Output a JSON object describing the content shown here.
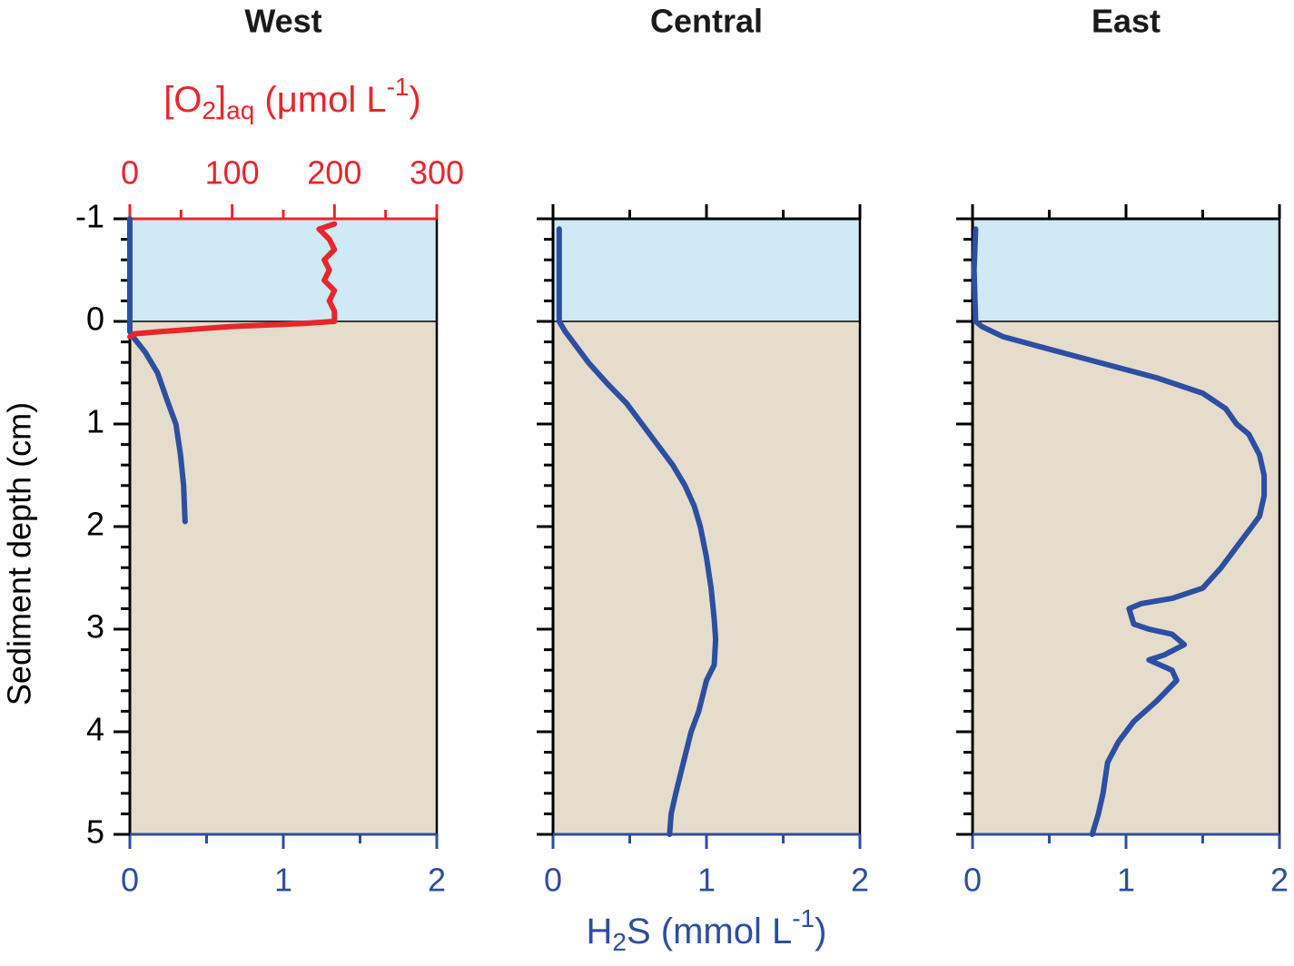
{
  "chart_data": [
    {
      "type": "line",
      "title": "West",
      "ylabel": "Sediment depth (cm)",
      "xlim": [
        0,
        2
      ],
      "xticks": [
        0,
        1,
        2
      ],
      "xminor": [
        0.5,
        1.5
      ],
      "xtick_color": "#2c4ea3",
      "ylim": [
        -1,
        5
      ],
      "yticks": [
        -1,
        0,
        1,
        2,
        3,
        4,
        5
      ],
      "yminor_step": 0.2,
      "ytick_labels": true,
      "x2lim": [
        0,
        300
      ],
      "x2ticks": [
        0,
        100,
        200,
        300
      ],
      "x2minor": [
        50,
        150,
        250
      ],
      "x2_color": "#e8262b",
      "x2label_parts": [
        {
          "text": "[O"
        },
        {
          "text": "2",
          "shift": "sub"
        },
        {
          "text": "]"
        },
        {
          "text": "aq",
          "shift": "sub"
        },
        {
          "text": " (μmol L"
        },
        {
          "text": "-1",
          "shift": "sup"
        },
        {
          "text": ")"
        }
      ],
      "layers": [
        {
          "color": "#cfe9f5",
          "top": -1,
          "bottom": 0
        },
        {
          "color": "#e5dccb",
          "top": 0,
          "bottom": 5
        }
      ],
      "series": [
        {
          "color": "#2c4ea3",
          "depth": [
            -1,
            -0.5,
            0,
            0.1,
            0.15,
            0.3,
            0.5,
            0.8,
            1.0,
            1.3,
            1.6,
            1.95
          ],
          "values": [
            0,
            0,
            0,
            0,
            0.02,
            0.1,
            0.18,
            0.25,
            0.3,
            0.33,
            0.35,
            0.36
          ]
        },
        {
          "color": "#e8262b",
          "axis": "x2",
          "depth": [
            -0.95,
            -0.9,
            -0.8,
            -0.7,
            -0.6,
            -0.5,
            -0.4,
            -0.3,
            -0.2,
            -0.1,
            0,
            0.02,
            0.05,
            0.1,
            0.12,
            0.15
          ],
          "values": [
            200,
            185,
            195,
            200,
            190,
            195,
            190,
            200,
            195,
            200,
            200,
            170,
            100,
            30,
            5,
            0
          ]
        }
      ]
    },
    {
      "type": "line",
      "title": "Central",
      "xlabel_parts": [
        {
          "text": "H"
        },
        {
          "text": "2",
          "shift": "sub"
        },
        {
          "text": "S (mmol L"
        },
        {
          "text": "-1",
          "shift": "sup"
        },
        {
          "text": ")"
        }
      ],
      "xlim": [
        0,
        2
      ],
      "xticks": [
        0,
        1,
        2
      ],
      "xminor": [
        0.5,
        1.5
      ],
      "xtick_color": "#2c4ea3",
      "top_ticks": true,
      "ylim": [
        -1,
        5
      ],
      "yticks": [
        -1,
        0,
        1,
        2,
        3,
        4,
        5
      ],
      "yminor_step": 0.2,
      "ytick_labels": false,
      "layers": [
        {
          "color": "#cfe9f5",
          "top": -1,
          "bottom": 0
        },
        {
          "color": "#e5dccb",
          "top": 0,
          "bottom": 5
        }
      ],
      "series": [
        {
          "color": "#2c4ea3",
          "depth": [
            -0.9,
            -0.5,
            0,
            0.1,
            0.2,
            0.4,
            0.6,
            0.8,
            1.0,
            1.2,
            1.4,
            1.6,
            1.8,
            2.0,
            2.3,
            2.6,
            2.9,
            3.1,
            3.35,
            3.5,
            3.8,
            4.0,
            4.3,
            4.6,
            4.8,
            5.0
          ],
          "values": [
            0.04,
            0.04,
            0.04,
            0.08,
            0.13,
            0.23,
            0.35,
            0.48,
            0.58,
            0.68,
            0.78,
            0.86,
            0.92,
            0.96,
            1.0,
            1.03,
            1.05,
            1.06,
            1.05,
            1.0,
            0.95,
            0.9,
            0.85,
            0.8,
            0.77,
            0.76
          ]
        }
      ]
    },
    {
      "type": "line",
      "title": "East",
      "xlim": [
        0,
        2
      ],
      "xticks": [
        0,
        1,
        2
      ],
      "xminor": [
        0.5,
        1.5
      ],
      "xtick_color": "#2c4ea3",
      "top_ticks": true,
      "ylim": [
        -1,
        5
      ],
      "yticks": [
        -1,
        0,
        1,
        2,
        3,
        4,
        5
      ],
      "yminor_step": 0.2,
      "ytick_labels": false,
      "layers": [
        {
          "color": "#cfe9f5",
          "top": -1,
          "bottom": 0
        },
        {
          "color": "#e5dccb",
          "top": 0,
          "bottom": 5
        }
      ],
      "series": [
        {
          "color": "#2c4ea3",
          "depth": [
            -0.9,
            -0.5,
            0,
            0.05,
            0.15,
            0.25,
            0.35,
            0.45,
            0.55,
            0.7,
            0.85,
            1.0,
            1.1,
            1.3,
            1.5,
            1.7,
            1.9,
            2.0,
            2.2,
            2.4,
            2.6,
            2.7,
            2.75,
            2.8,
            2.95,
            3.0,
            3.05,
            3.15,
            3.25,
            3.3,
            3.4,
            3.5,
            3.7,
            3.9,
            4.1,
            4.3,
            4.6,
            4.8,
            5.0
          ],
          "values": [
            0.02,
            0.01,
            0.02,
            0.06,
            0.2,
            0.45,
            0.7,
            0.95,
            1.2,
            1.5,
            1.65,
            1.72,
            1.8,
            1.87,
            1.9,
            1.9,
            1.87,
            1.82,
            1.72,
            1.62,
            1.5,
            1.3,
            1.1,
            1.02,
            1.05,
            1.15,
            1.3,
            1.38,
            1.25,
            1.15,
            1.3,
            1.33,
            1.2,
            1.05,
            0.95,
            0.88,
            0.85,
            0.82,
            0.78
          ]
        }
      ]
    }
  ]
}
